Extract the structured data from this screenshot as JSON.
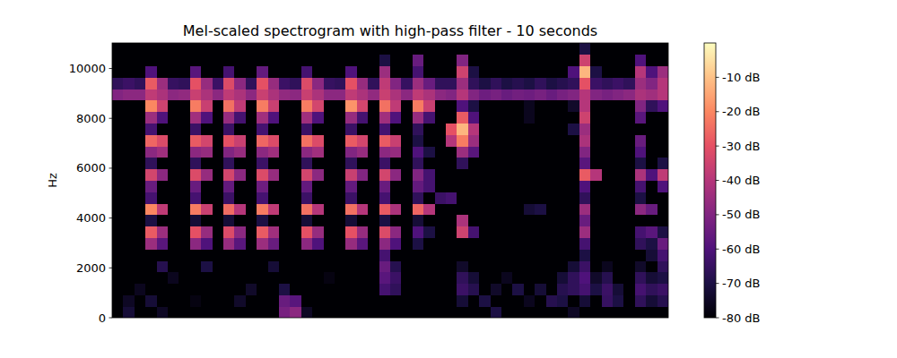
{
  "chart_data": {
    "type": "heatmap",
    "title": "Mel-scaled spectrogram with high-pass filter - 10 seconds",
    "y_label": "Hz",
    "xlim": [
      0,
      10
    ],
    "ylim": [
      0,
      11025
    ],
    "yticks": [
      0,
      2000,
      4000,
      6000,
      8000,
      10000
    ],
    "tick_labels": "y",
    "zlim": [
      -80,
      0
    ],
    "zticks": [
      {
        "value": -10,
        "label": "-10 dB"
      },
      {
        "value": -20,
        "label": "-20 dB"
      },
      {
        "value": -30,
        "label": "-30 dB"
      },
      {
        "value": -40,
        "label": "-40 dB"
      },
      {
        "value": -50,
        "label": "-50 dB"
      },
      {
        "value": -60,
        "label": "-60 dB"
      },
      {
        "value": -70,
        "label": "-70 dB"
      },
      {
        "value": -80,
        "label": "-80 dB"
      }
    ],
    "cells": [
      [
        -80,
        -72,
        -80,
        -80,
        -75,
        -80,
        -80,
        -80,
        -80,
        -80,
        -80,
        -80,
        -80,
        -80,
        -80,
        -52,
        -48,
        -75,
        -80,
        -80,
        -80,
        -80,
        -80,
        -80,
        -80,
        -80,
        -80,
        -80,
        -80,
        -80,
        -80,
        -80,
        -80,
        -80,
        -70,
        -80,
        -80,
        -80,
        -80,
        -80,
        -80,
        -75,
        -80,
        -80,
        -80,
        -80,
        -80,
        -80,
        -80,
        -80
      ],
      [
        -80,
        -75,
        -80,
        -72,
        -80,
        -80,
        -80,
        -78,
        -80,
        -80,
        -80,
        -74,
        -80,
        -80,
        -80,
        -55,
        -58,
        -80,
        -80,
        -80,
        -80,
        -80,
        -80,
        -80,
        -80,
        -80,
        -80,
        -80,
        -80,
        -80,
        -80,
        -72,
        -80,
        -70,
        -80,
        -80,
        -80,
        -76,
        -80,
        -68,
        -70,
        -80,
        -72,
        -80,
        -65,
        -70,
        -80,
        -66,
        -72,
        -68
      ],
      [
        -80,
        -80,
        -76,
        -80,
        -80,
        -80,
        -80,
        -80,
        -80,
        -80,
        -80,
        -80,
        -74,
        -80,
        -80,
        -70,
        -80,
        -80,
        -80,
        -80,
        -80,
        -80,
        -80,
        -80,
        -62,
        -66,
        -80,
        -80,
        -80,
        -80,
        -80,
        -64,
        -68,
        -80,
        -74,
        -80,
        -70,
        -80,
        -72,
        -80,
        -68,
        -66,
        -62,
        -70,
        -64,
        -72,
        -80,
        -62,
        -66,
        -64
      ],
      [
        -80,
        -80,
        -80,
        -80,
        -80,
        -76,
        -80,
        -80,
        -80,
        -80,
        -80,
        -80,
        -80,
        -80,
        -80,
        -80,
        -80,
        -80,
        -80,
        -78,
        -80,
        -80,
        -80,
        -80,
        -58,
        -64,
        -80,
        -80,
        -80,
        -80,
        -80,
        -66,
        -72,
        -80,
        -80,
        -76,
        -80,
        -80,
        -80,
        -80,
        -72,
        -66,
        -60,
        -74,
        -68,
        -80,
        -80,
        -66,
        -72,
        -70
      ],
      [
        -80,
        -80,
        -80,
        -80,
        -68,
        -80,
        -80,
        -80,
        -70,
        -80,
        -80,
        -80,
        -80,
        -80,
        -72,
        -80,
        -80,
        -80,
        -80,
        -80,
        -80,
        -80,
        -80,
        -80,
        -55,
        -68,
        -80,
        -80,
        -80,
        -80,
        -80,
        -74,
        -80,
        -80,
        -80,
        -80,
        -80,
        -80,
        -80,
        -80,
        -80,
        -72,
        -64,
        -80,
        -76,
        -80,
        -80,
        -74,
        -80,
        -66
      ],
      [
        -80,
        -80,
        -80,
        -80,
        -80,
        -80,
        -80,
        -80,
        -80,
        -80,
        -80,
        -80,
        -80,
        -80,
        -80,
        -80,
        -80,
        -80,
        -80,
        -80,
        -80,
        -80,
        -80,
        -80,
        -62,
        -80,
        -80,
        -80,
        -80,
        -80,
        -80,
        -80,
        -80,
        -80,
        -80,
        -80,
        -80,
        -80,
        -80,
        -80,
        -80,
        -80,
        -70,
        -80,
        -80,
        -80,
        -80,
        -80,
        -72,
        -62
      ],
      [
        -80,
        -80,
        -80,
        -45,
        -58,
        -80,
        -80,
        -48,
        -60,
        -80,
        -46,
        -58,
        -80,
        -45,
        -55,
        -80,
        -80,
        -48,
        -60,
        -80,
        -80,
        -46,
        -58,
        -80,
        -48,
        -60,
        -80,
        -70,
        -80,
        -80,
        -80,
        -80,
        -80,
        -80,
        -80,
        -80,
        -80,
        -80,
        -80,
        -80,
        -80,
        -80,
        -62,
        -80,
        -80,
        -80,
        -80,
        -66,
        -70,
        -55
      ],
      [
        -80,
        -80,
        -80,
        -28,
        -45,
        -80,
        -80,
        -30,
        -46,
        -80,
        -32,
        -48,
        -80,
        -28,
        -44,
        -80,
        -80,
        -30,
        -46,
        -80,
        -80,
        -30,
        -46,
        -80,
        -32,
        -48,
        -80,
        -60,
        -70,
        -80,
        -80,
        -35,
        -62,
        -80,
        -80,
        -80,
        -80,
        -80,
        -80,
        -80,
        -80,
        -80,
        -45,
        -80,
        -80,
        -80,
        -80,
        -62,
        -58,
        -70
      ],
      [
        -80,
        -80,
        -80,
        -70,
        -80,
        -80,
        -80,
        -72,
        -80,
        -80,
        -72,
        -80,
        -80,
        -70,
        -80,
        -80,
        -80,
        -72,
        -80,
        -80,
        -80,
        -72,
        -80,
        -80,
        -70,
        -80,
        -80,
        -72,
        -80,
        -80,
        -80,
        -42,
        -80,
        -80,
        -80,
        -80,
        -80,
        -80,
        -80,
        -80,
        -80,
        -80,
        -55,
        -80,
        -80,
        -80,
        -80,
        -80,
        -80,
        -80
      ],
      [
        -80,
        -80,
        -80,
        -20,
        -38,
        -80,
        -80,
        -22,
        -36,
        -80,
        -25,
        -40,
        -80,
        -22,
        -38,
        -80,
        -80,
        -24,
        -40,
        -80,
        -80,
        -24,
        -40,
        -80,
        -28,
        -42,
        -80,
        -26,
        -40,
        -80,
        -80,
        -80,
        -80,
        -80,
        -80,
        -80,
        -80,
        -72,
        -70,
        -80,
        -80,
        -80,
        -45,
        -80,
        -80,
        -80,
        -80,
        -48,
        -55,
        -80
      ],
      [
        -80,
        -80,
        -80,
        -62,
        -80,
        -80,
        -80,
        -62,
        -80,
        -80,
        -64,
        -80,
        -80,
        -62,
        -80,
        -80,
        -80,
        -64,
        -80,
        -80,
        -80,
        -64,
        -80,
        -80,
        -62,
        -80,
        -80,
        -66,
        -80,
        -64,
        -62,
        -80,
        -80,
        -80,
        -80,
        -80,
        -80,
        -80,
        -80,
        -80,
        -80,
        -80,
        -66,
        -80,
        -80,
        -80,
        -80,
        -70,
        -80,
        -80
      ],
      [
        -80,
        -80,
        -80,
        -55,
        -80,
        -80,
        -80,
        -55,
        -80,
        -80,
        -56,
        -80,
        -80,
        -54,
        -80,
        -80,
        -80,
        -56,
        -80,
        -80,
        -80,
        -56,
        -80,
        -80,
        -55,
        -80,
        -80,
        -56,
        -62,
        -80,
        -80,
        -80,
        -80,
        -80,
        -80,
        -80,
        -80,
        -80,
        -80,
        -80,
        -80,
        -80,
        -60,
        -80,
        -80,
        -80,
        -80,
        -62,
        -80,
        -60
      ],
      [
        -80,
        -80,
        -80,
        -34,
        -48,
        -80,
        -80,
        -32,
        -46,
        -80,
        -34,
        -48,
        -80,
        -32,
        -46,
        -80,
        -80,
        -34,
        -48,
        -80,
        -80,
        -36,
        -50,
        -80,
        -34,
        -48,
        -80,
        -50,
        -62,
        -80,
        -80,
        -80,
        -80,
        -80,
        -80,
        -80,
        -80,
        -80,
        -80,
        -80,
        -80,
        -80,
        -28,
        -40,
        -80,
        -80,
        -80,
        -42,
        -60,
        -38
      ],
      [
        -80,
        -80,
        -80,
        -66,
        -80,
        -80,
        -80,
        -66,
        -80,
        -80,
        -66,
        -80,
        -80,
        -64,
        -80,
        -80,
        -80,
        -66,
        -80,
        -80,
        -80,
        -66,
        -80,
        -80,
        -64,
        -80,
        -80,
        -66,
        -80,
        -80,
        -80,
        -66,
        -80,
        -80,
        -80,
        -80,
        -80,
        -80,
        -80,
        -80,
        -80,
        -80,
        -58,
        -80,
        -80,
        -80,
        -80,
        -70,
        -80,
        -70
      ],
      [
        -80,
        -80,
        -80,
        -48,
        -44,
        -80,
        -80,
        -48,
        -46,
        -80,
        -50,
        -46,
        -80,
        -48,
        -44,
        -80,
        -80,
        -48,
        -44,
        -80,
        -80,
        -50,
        -46,
        -80,
        -48,
        -46,
        -80,
        -60,
        -70,
        -80,
        -80,
        -45,
        -58,
        -80,
        -80,
        -80,
        -80,
        -80,
        -80,
        -80,
        -80,
        -80,
        -50,
        -80,
        -80,
        -80,
        -80,
        -60,
        -80,
        -80
      ],
      [
        -80,
        -80,
        -80,
        -26,
        -32,
        -80,
        -80,
        -28,
        -34,
        -80,
        -30,
        -36,
        -80,
        -26,
        -32,
        -80,
        -80,
        -24,
        -32,
        -80,
        -80,
        -28,
        -34,
        -80,
        -28,
        -36,
        -80,
        -70,
        -80,
        -80,
        -40,
        -22,
        -45,
        -80,
        -80,
        -80,
        -80,
        -80,
        -80,
        -80,
        -80,
        -80,
        -42,
        -80,
        -80,
        -80,
        -80,
        -55,
        -80,
        -80
      ],
      [
        -80,
        -80,
        -80,
        -62,
        -80,
        -80,
        -80,
        -64,
        -80,
        -80,
        -64,
        -80,
        -80,
        -62,
        -80,
        -80,
        -80,
        -64,
        -80,
        -80,
        -80,
        -64,
        -80,
        -80,
        -62,
        -80,
        -80,
        -66,
        -80,
        -80,
        -30,
        -12,
        -40,
        -80,
        -80,
        -80,
        -80,
        -80,
        -80,
        -80,
        -80,
        -70,
        -45,
        -80,
        -80,
        -80,
        -80,
        -80,
        -80,
        -80
      ],
      [
        -80,
        -80,
        -80,
        -45,
        -60,
        -80,
        -80,
        -44,
        -60,
        -80,
        -46,
        -62,
        -80,
        -44,
        -60,
        -80,
        -80,
        -44,
        -60,
        -80,
        -80,
        -46,
        -62,
        -80,
        -44,
        -60,
        -80,
        -46,
        -62,
        -80,
        -80,
        -28,
        -60,
        -80,
        -80,
        -80,
        -80,
        -76,
        -80,
        -80,
        -80,
        -80,
        -35,
        -80,
        -80,
        -80,
        -80,
        -58,
        -80,
        -80
      ],
      [
        -80,
        -80,
        -80,
        -20,
        -35,
        -80,
        -80,
        -22,
        -36,
        -80,
        -24,
        -38,
        -80,
        -22,
        -36,
        -80,
        -80,
        -22,
        -34,
        -80,
        -80,
        -18,
        -34,
        -80,
        -24,
        -38,
        -80,
        -22,
        -36,
        -80,
        -80,
        -60,
        -70,
        -80,
        -80,
        -80,
        -80,
        -76,
        -80,
        -80,
        -80,
        -74,
        -40,
        -80,
        -80,
        -80,
        -80,
        -50,
        -66,
        -60
      ],
      [
        -50,
        -48,
        -48,
        -38,
        -42,
        -48,
        -47,
        -36,
        -42,
        -48,
        -38,
        -42,
        -48,
        -36,
        -42,
        -47,
        -48,
        -36,
        -42,
        -48,
        -48,
        -38,
        -42,
        -47,
        -36,
        -42,
        -48,
        -38,
        -42,
        -48,
        -50,
        -40,
        -50,
        -54,
        -52,
        -55,
        -53,
        -54,
        -52,
        -55,
        -52,
        -50,
        -40,
        -50,
        -52,
        -50,
        -48,
        -42,
        -44,
        -40
      ],
      [
        -66,
        -64,
        -66,
        -28,
        -45,
        -65,
        -66,
        -30,
        -46,
        -64,
        -32,
        -48,
        -66,
        -30,
        -46,
        -64,
        -66,
        -32,
        -48,
        -65,
        -66,
        -30,
        -46,
        -66,
        -38,
        -50,
        -65,
        -45,
        -55,
        -66,
        -66,
        -45,
        -66,
        -70,
        -66,
        -70,
        -68,
        -70,
        -66,
        -70,
        -68,
        -66,
        -30,
        -64,
        -66,
        -64,
        -66,
        -45,
        -50,
        -40
      ],
      [
        -80,
        -80,
        -80,
        -60,
        -80,
        -80,
        -80,
        -58,
        -80,
        -80,
        -62,
        -80,
        -80,
        -56,
        -80,
        -80,
        -80,
        -62,
        -80,
        -80,
        -80,
        -60,
        -80,
        -80,
        -45,
        -80,
        -80,
        -62,
        -80,
        -80,
        -80,
        -35,
        -70,
        -80,
        -80,
        -80,
        -80,
        -80,
        -80,
        -80,
        -80,
        -60,
        -12,
        -70,
        -80,
        -80,
        -80,
        -40,
        -60,
        -45
      ],
      [
        -80,
        -80,
        -80,
        -80,
        -80,
        -80,
        -80,
        -80,
        -80,
        -80,
        -80,
        -80,
        -80,
        -80,
        -80,
        -80,
        -80,
        -80,
        -80,
        -80,
        -80,
        -80,
        -80,
        -80,
        -70,
        -80,
        -80,
        -55,
        -80,
        -80,
        -80,
        -50,
        -80,
        -80,
        -80,
        -80,
        -80,
        -80,
        -80,
        -80,
        -80,
        -80,
        -35,
        -80,
        -80,
        -80,
        -80,
        -60,
        -80,
        -80
      ],
      [
        -80,
        -80,
        -80,
        -80,
        -80,
        -80,
        -80,
        -80,
        -80,
        -80,
        -80,
        -80,
        -80,
        -80,
        -80,
        -80,
        -80,
        -80,
        -80,
        -80,
        -80,
        -80,
        -80,
        -80,
        -80,
        -80,
        -80,
        -80,
        -80,
        -80,
        -80,
        -80,
        -80,
        -80,
        -80,
        -80,
        -80,
        -80,
        -80,
        -80,
        -80,
        -80,
        -70,
        -80,
        -80,
        -80,
        -80,
        -80,
        -80,
        -80
      ]
    ]
  }
}
